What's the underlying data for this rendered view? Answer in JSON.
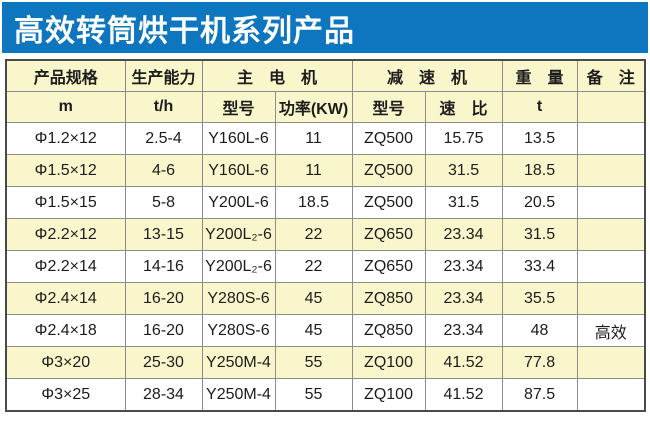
{
  "page": {
    "title": "高效转筒烘干机系列产品"
  },
  "colors": {
    "title_bar_bg": "#0E76BE",
    "title_text": "#FFFFFF",
    "stripe_bg": "#FAF6CB",
    "grid_line": "#8D8D8D",
    "outer_border": "#4A4A4A",
    "text": "#1C1C1C"
  },
  "table": {
    "header_row1": [
      "产品规格",
      "生产能力",
      "主　电　机",
      "减　速　机",
      "重　量",
      "备　注"
    ],
    "header_row2": [
      "m",
      "t/h",
      "型号",
      "功率(KW)",
      "型号",
      "速　比",
      "t",
      ""
    ],
    "rows": [
      {
        "cells": [
          "Φ1.2×12",
          "2.5-4",
          "Y160L-6",
          "11",
          "ZQ500",
          "15.75",
          "13.5",
          ""
        ]
      },
      {
        "cells": [
          "Φ1.5×12",
          "4-6",
          "Y160L-6",
          "11",
          "ZQ500",
          "31.5",
          "18.5",
          ""
        ]
      },
      {
        "cells": [
          "Φ1.5×15",
          "5-8",
          "Y200L-6",
          "18.5",
          "ZQ500",
          "31.5",
          "20.5",
          ""
        ]
      },
      {
        "cells": [
          "Φ2.2×12",
          "13-15",
          "Y200L₂-6",
          "22",
          "ZQ650",
          "23.34",
          "31.5",
          ""
        ]
      },
      {
        "cells": [
          "Φ2.2×14",
          "14-16",
          "Y200L₂-6",
          "22",
          "ZQ650",
          "23.34",
          "33.4",
          ""
        ]
      },
      {
        "cells": [
          "Φ2.4×14",
          "16-20",
          "Y280S-6",
          "45",
          "ZQ850",
          "23.34",
          "35.5",
          ""
        ]
      },
      {
        "cells": [
          "Φ2.4×18",
          "16-20",
          "Y280S-6",
          "45",
          "ZQ850",
          "23.34",
          "48",
          "高效"
        ]
      },
      {
        "cells": [
          "Φ3×20",
          "25-30",
          "Y250M-4",
          "55",
          "ZQ100",
          "41.52",
          "77.8",
          ""
        ]
      },
      {
        "cells": [
          "Φ3×25",
          "28-34",
          "Y250M-4",
          "55",
          "ZQ100",
          "41.52",
          "87.5",
          ""
        ]
      }
    ]
  }
}
